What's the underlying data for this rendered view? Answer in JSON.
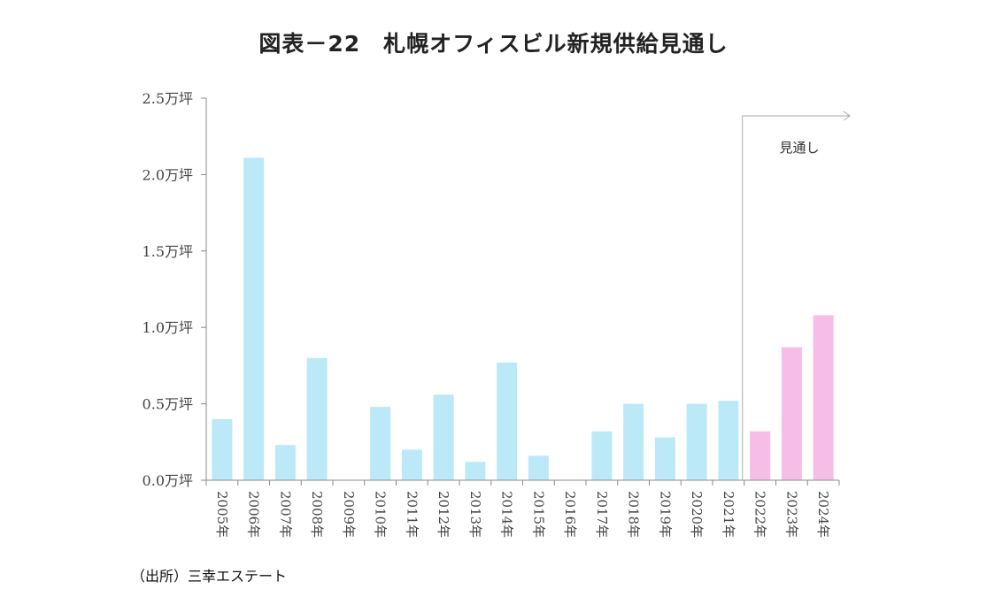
{
  "title": "図表－22　札幌オフィスビル新規供給見通し",
  "source": "（出所）三幸エステート",
  "chart_data": {
    "type": "bar",
    "title": "図表－22　札幌オフィスビル新規供給見通し",
    "xlabel": "",
    "ylabel": "",
    "ylim": [
      0,
      2.5
    ],
    "yticks": [
      0.0,
      0.5,
      1.0,
      1.5,
      2.0,
      2.5
    ],
    "ytick_labels": [
      "0.0万坪",
      "0.5万坪",
      "1.0万坪",
      "1.5万坪",
      "2.0万坪",
      "2.5万坪"
    ],
    "categories": [
      "2005年",
      "2006年",
      "2007年",
      "2008年",
      "2009年",
      "2010年",
      "2011年",
      "2012年",
      "2013年",
      "2014年",
      "2015年",
      "2016年",
      "2017年",
      "2018年",
      "2019年",
      "2020年",
      "2021年",
      "2022年",
      "2023年",
      "2024年"
    ],
    "values": [
      0.4,
      2.11,
      0.23,
      0.8,
      0.0,
      0.48,
      0.2,
      0.56,
      0.12,
      0.77,
      0.16,
      0.0,
      0.32,
      0.5,
      0.28,
      0.5,
      0.52,
      0.32,
      0.87,
      1.08
    ],
    "forecast_from": "2022年",
    "annotation": "見通し",
    "colors": {
      "actual": "#bce9f7",
      "forecast": "#f7bde9",
      "axis": "#888888",
      "divider": "#aaaaaa"
    },
    "grid": false,
    "legend": "none"
  }
}
